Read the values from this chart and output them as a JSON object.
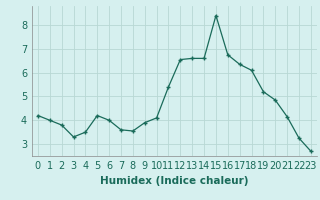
{
  "x": [
    0,
    1,
    2,
    3,
    4,
    5,
    6,
    7,
    8,
    9,
    10,
    11,
    12,
    13,
    14,
    15,
    16,
    17,
    18,
    19,
    20,
    21,
    22,
    23
  ],
  "y": [
    4.2,
    4.0,
    3.8,
    3.3,
    3.5,
    4.2,
    4.0,
    3.6,
    3.55,
    3.9,
    4.1,
    5.4,
    6.55,
    6.6,
    6.6,
    8.4,
    6.75,
    6.35,
    6.1,
    5.2,
    4.85,
    4.15,
    3.25,
    2.7
  ],
  "line_color": "#1a6b5a",
  "marker": "+",
  "marker_size": 3.5,
  "marker_lw": 1.0,
  "bg_color": "#d6f0ef",
  "grid_color": "#b8d8d4",
  "xlabel": "Humidex (Indice chaleur)",
  "xlabel_fontsize": 7.5,
  "tick_fontsize": 7,
  "ylim": [
    2.5,
    8.8
  ],
  "yticks": [
    3,
    4,
    5,
    6,
    7,
    8
  ],
  "xlim": [
    -0.5,
    23.5
  ],
  "xticks": [
    0,
    1,
    2,
    3,
    4,
    5,
    6,
    7,
    8,
    9,
    10,
    11,
    12,
    13,
    14,
    15,
    16,
    17,
    18,
    19,
    20,
    21,
    22,
    23
  ]
}
